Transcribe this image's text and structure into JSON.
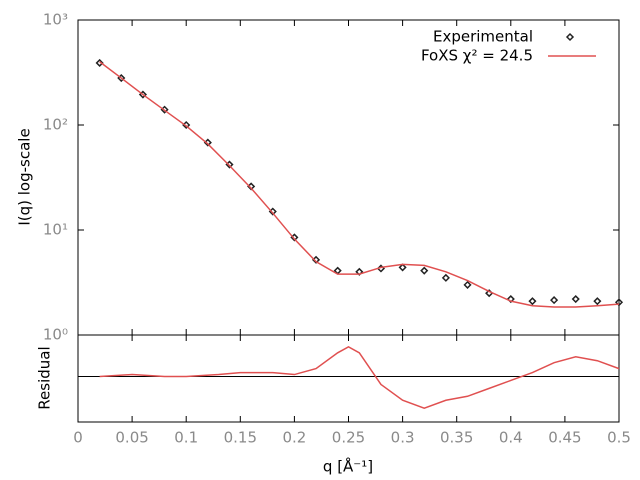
{
  "chart_data": [
    {
      "type": "line",
      "ylabel": "I(q) log-scale",
      "log_y": true,
      "xlim": [
        0,
        0.5
      ],
      "ylim": [
        1,
        1000
      ],
      "yticks": [
        {
          "value": 1000,
          "label": "10³"
        },
        {
          "value": 100,
          "label": "10²"
        },
        {
          "value": 10,
          "label": "10¹"
        },
        {
          "value": 1,
          "label": "10⁰"
        }
      ],
      "x": [
        0.02,
        0.04,
        0.06,
        0.08,
        0.1,
        0.12,
        0.14,
        0.16,
        0.18,
        0.2,
        0.22,
        0.24,
        0.26,
        0.28,
        0.3,
        0.32,
        0.34,
        0.36,
        0.38,
        0.4,
        0.42,
        0.44,
        0.46,
        0.48,
        0.5
      ],
      "legend": "top-right",
      "series": [
        {
          "name": "Experimental",
          "color": "#222222",
          "style": "points",
          "values": [
            390,
            280,
            195,
            140,
            100,
            68,
            42,
            26,
            15,
            8.5,
            5.2,
            4.1,
            4.0,
            4.3,
            4.4,
            4.1,
            3.5,
            3.0,
            2.5,
            2.2,
            2.1,
            2.15,
            2.2,
            2.1,
            2.05
          ]
        },
        {
          "name": "FoXS χ² = 24.5",
          "color": "#e05050",
          "style": "line",
          "values": [
            400,
            280,
            195,
            138,
            98,
            66,
            41,
            25,
            14.5,
            8.2,
            5.0,
            3.8,
            3.8,
            4.4,
            4.7,
            4.6,
            4.0,
            3.3,
            2.6,
            2.1,
            1.9,
            1.85,
            1.85,
            1.9,
            1.97
          ]
        }
      ]
    },
    {
      "type": "line",
      "ylabel": "Residual",
      "xlabel": "q [Å⁻¹]",
      "xlim": [
        0,
        0.5
      ],
      "ylim": [
        -1.15,
        1.05
      ],
      "zero_line": 0,
      "xticks": [
        0,
        0.05,
        0.1,
        0.15,
        0.2,
        0.25,
        0.3,
        0.35,
        0.4,
        0.45,
        0.5
      ],
      "x": [
        0.02,
        0.05,
        0.08,
        0.1,
        0.13,
        0.15,
        0.18,
        0.2,
        0.22,
        0.24,
        0.25,
        0.26,
        0.28,
        0.3,
        0.32,
        0.34,
        0.36,
        0.38,
        0.4,
        0.42,
        0.44,
        0.46,
        0.48,
        0.5
      ],
      "series": [
        {
          "color": "#e05050",
          "values": [
            0.0,
            0.05,
            0.0,
            0.0,
            0.05,
            0.1,
            0.1,
            0.05,
            0.2,
            0.6,
            0.75,
            0.6,
            -0.2,
            -0.6,
            -0.8,
            -0.6,
            -0.5,
            -0.3,
            -0.1,
            0.1,
            0.35,
            0.5,
            0.4,
            0.2
          ]
        }
      ]
    }
  ]
}
